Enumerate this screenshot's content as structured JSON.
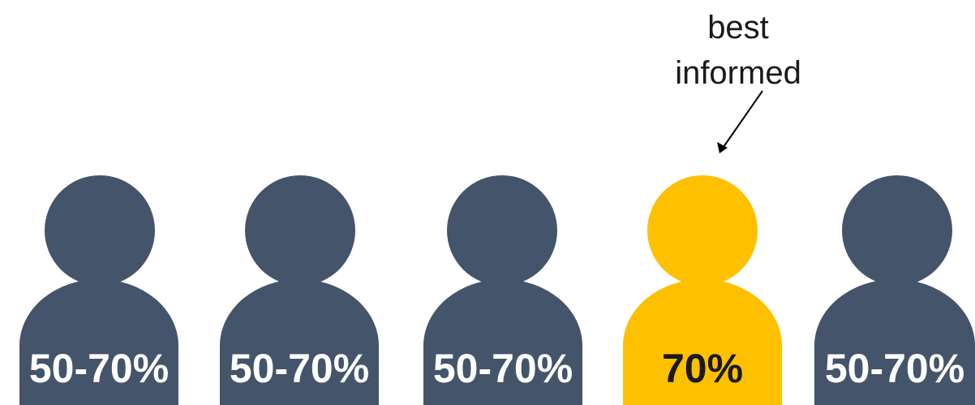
{
  "annotation": {
    "line1": "best",
    "line2": "informed"
  },
  "colors": {
    "person_default": "#44546a",
    "person_highlight": "#ffc000",
    "label_on_dark": "#ffffff",
    "label_on_highlight": "#1a1a1a"
  },
  "people": [
    {
      "label": "50-70%",
      "highlighted": false
    },
    {
      "label": "50-70%",
      "highlighted": false
    },
    {
      "label": "50-70%",
      "highlighted": false
    },
    {
      "label": "70%",
      "highlighted": true
    },
    {
      "label": "50-70%",
      "highlighted": false
    }
  ]
}
